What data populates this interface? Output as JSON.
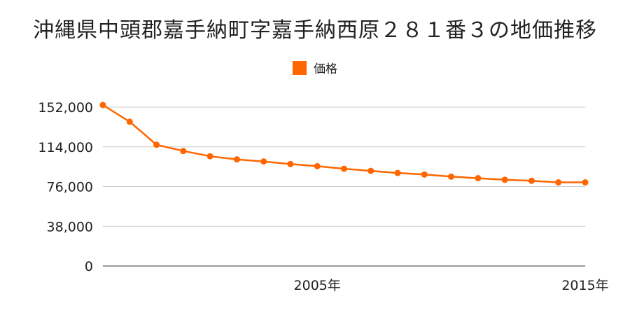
{
  "title": "沖縄県中頭郡嘉手納町字嘉手納西原２８１番３の地価推移",
  "legend_label": "価格",
  "colors": {
    "series": "#ff6600",
    "grid": "#cccccc",
    "axis": "#333333"
  },
  "chart_data": {
    "type": "line",
    "title": "沖縄県中頭郡嘉手納町字嘉手納西原２８１番３の地価推移",
    "xlabel": "",
    "ylabel": "",
    "x": [
      1997,
      1998,
      1999,
      2000,
      2001,
      2002,
      2003,
      2004,
      2005,
      2006,
      2007,
      2008,
      2009,
      2010,
      2011,
      2012,
      2013,
      2014,
      2015
    ],
    "x_tick_labels": [
      "2005年",
      "2015年"
    ],
    "x_tick_values": [
      2005,
      2015
    ],
    "y_ticks": [
      0,
      38000,
      76000,
      114000,
      152000
    ],
    "y_tick_labels": [
      "0",
      "38,000",
      "76,000",
      "114,000",
      "152,000"
    ],
    "ylim": [
      0,
      152000
    ],
    "grid": true,
    "legend_position": "top-center",
    "series": [
      {
        "name": "価格",
        "values": [
          154000,
          138000,
          116000,
          110000,
          105000,
          102000,
          100000,
          97500,
          95500,
          93000,
          91000,
          89000,
          87500,
          85500,
          84000,
          82500,
          81500,
          80000,
          80000
        ]
      }
    ]
  }
}
